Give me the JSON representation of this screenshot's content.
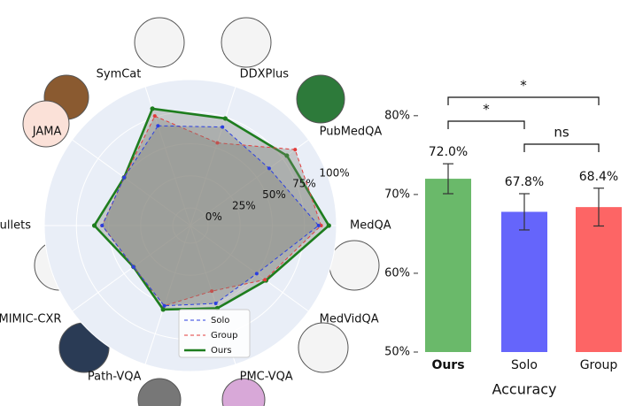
{
  "chart_data": [
    {
      "type": "radar",
      "axes": [
        "SymCat",
        "DDXPlus",
        "PubMedQA",
        "MedQA",
        "MedVidQA",
        "PMC-VQA",
        "Path-VQA",
        "MIMIC-CXR",
        "MedBullets",
        "JAMA"
      ],
      "rlim": [
        0,
        100
      ],
      "rticks": [
        {
          "value": 0,
          "label": "0%"
        },
        {
          "value": 25,
          "label": "25%"
        },
        {
          "value": 50,
          "label": "50%"
        },
        {
          "value": 75,
          "label": "75%"
        },
        {
          "value": 100,
          "label": "100%"
        }
      ],
      "grid": true,
      "series": [
        {
          "name": "Solo",
          "color": "#2b3fe0",
          "dash": true,
          "values": [
            68,
            67,
            62,
            86,
            50,
            50,
            52,
            41,
            55,
            50
          ]
        },
        {
          "name": "Group",
          "color": "#e23a3a",
          "dash": true,
          "values": [
            76,
            54,
            87,
            88,
            58,
            40,
            52,
            41,
            55,
            50
          ]
        },
        {
          "name": "Ours",
          "color": "#1e7d1e",
          "dash": false,
          "values": [
            82,
            74,
            79,
            94,
            59,
            54,
            55,
            41,
            61,
            50
          ]
        }
      ]
    },
    {
      "type": "bar",
      "categories": [
        "Ours",
        "Solo",
        "Group"
      ],
      "values": [
        72.0,
        67.8,
        68.4
      ],
      "value_labels": [
        "72.0%",
        "67.8%",
        "68.4%"
      ],
      "errors": [
        1.9,
        2.3,
        2.4
      ],
      "colors": [
        "#6ab96a",
        "#6565fb",
        "#fd6565"
      ],
      "xlabel": "Accuracy",
      "ylim": [
        50,
        82
      ],
      "yticks": [
        {
          "value": 50,
          "label": "50%"
        },
        {
          "value": 60,
          "label": "60%"
        },
        {
          "value": 70,
          "label": "70%"
        },
        {
          "value": 80,
          "label": "80%"
        }
      ],
      "significance": [
        {
          "pair": [
            0,
            2
          ],
          "label": "*"
        },
        {
          "pair": [
            0,
            1
          ],
          "label": "*"
        },
        {
          "pair": [
            1,
            2
          ],
          "label": "ns"
        }
      ]
    }
  ]
}
